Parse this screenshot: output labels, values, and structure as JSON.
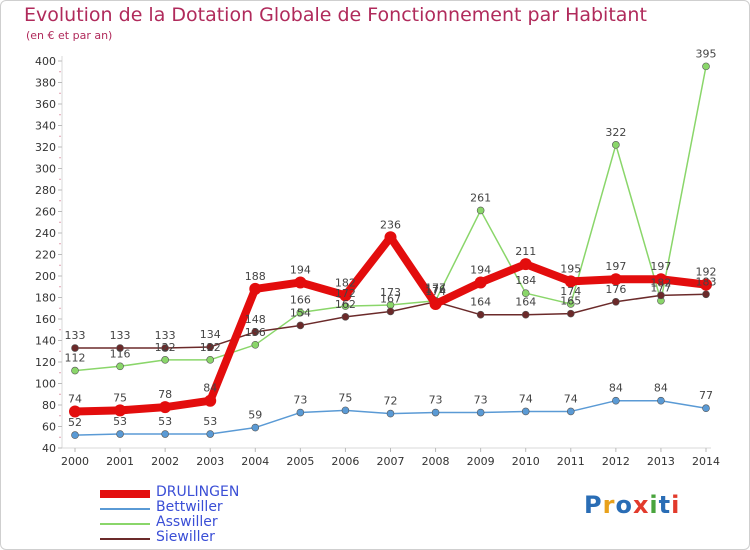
{
  "title": "Evolution de la Dotation Globale de Fonctionnement par Habitant",
  "subtitle": "(en € et par an)",
  "logo": {
    "text": "Proxiti",
    "colors": [
      "#2a6db5",
      "#e8a11b",
      "#2a6db5",
      "#e23a2c",
      "#49a43d",
      "#2a6db5",
      "#e23a2c"
    ]
  },
  "chart_data": {
    "type": "line",
    "x": [
      "2000",
      "2001",
      "2002",
      "2003",
      "2004",
      "2005",
      "2006",
      "2007",
      "2008",
      "2009",
      "2010",
      "2011",
      "2012",
      "2013",
      "2014"
    ],
    "ylim": [
      40,
      400
    ],
    "yticks": [
      40,
      60,
      80,
      100,
      120,
      140,
      160,
      180,
      200,
      220,
      240,
      260,
      280,
      300,
      320,
      340,
      360,
      380,
      400
    ],
    "grid": false,
    "legend_position": "bottom-left",
    "series": [
      {
        "name": "DRULINGEN",
        "color": "#e30d0d",
        "width": 8,
        "marker": 6,
        "values": [
          74,
          75,
          78,
          84,
          188,
          194,
          182,
          236,
          174,
          194,
          211,
          195,
          197,
          197,
          192
        ],
        "labels": [
          "74",
          "75",
          "78",
          "84",
          "188",
          "194",
          "182",
          "236",
          "174",
          "194",
          "211",
          "195",
          "197",
          "197",
          "192"
        ]
      },
      {
        "name": "Bettwiller",
        "color": "#5a9ad5",
        "width": 1.5,
        "marker": 3.5,
        "values": [
          52,
          53,
          53,
          53,
          59,
          73,
          75,
          72,
          73,
          73,
          74,
          74,
          84,
          84,
          77
        ],
        "labels": [
          "52",
          "53",
          "53",
          "53",
          "59",
          "73",
          "75",
          "72",
          "73",
          "73",
          "74",
          "74",
          "84",
          "84",
          "77"
        ]
      },
      {
        "name": "Asswiller",
        "color": "#8ad66a",
        "width": 1.5,
        "marker": 3.5,
        "values": [
          112,
          116,
          122,
          122,
          136,
          166,
          172,
          173,
          177,
          261,
          184,
          174,
          322,
          177,
          395
        ],
        "labels": [
          "112",
          "116",
          "122",
          "122",
          "136",
          "166",
          "172",
          "173",
          "177",
          "261",
          "184",
          "174",
          "322",
          "177",
          "395"
        ]
      },
      {
        "name": "Siewiller",
        "color": "#6b2a2a",
        "width": 1.5,
        "marker": 3.5,
        "values": [
          133,
          133,
          133,
          134,
          148,
          154,
          162,
          167,
          176,
          164,
          164,
          165,
          176,
          182,
          183
        ],
        "labels": [
          "133",
          "133",
          "133",
          "134",
          "148",
          "154",
          "162",
          "167",
          "176",
          "164",
          "164",
          "165",
          "176",
          "182",
          "183"
        ]
      }
    ]
  }
}
